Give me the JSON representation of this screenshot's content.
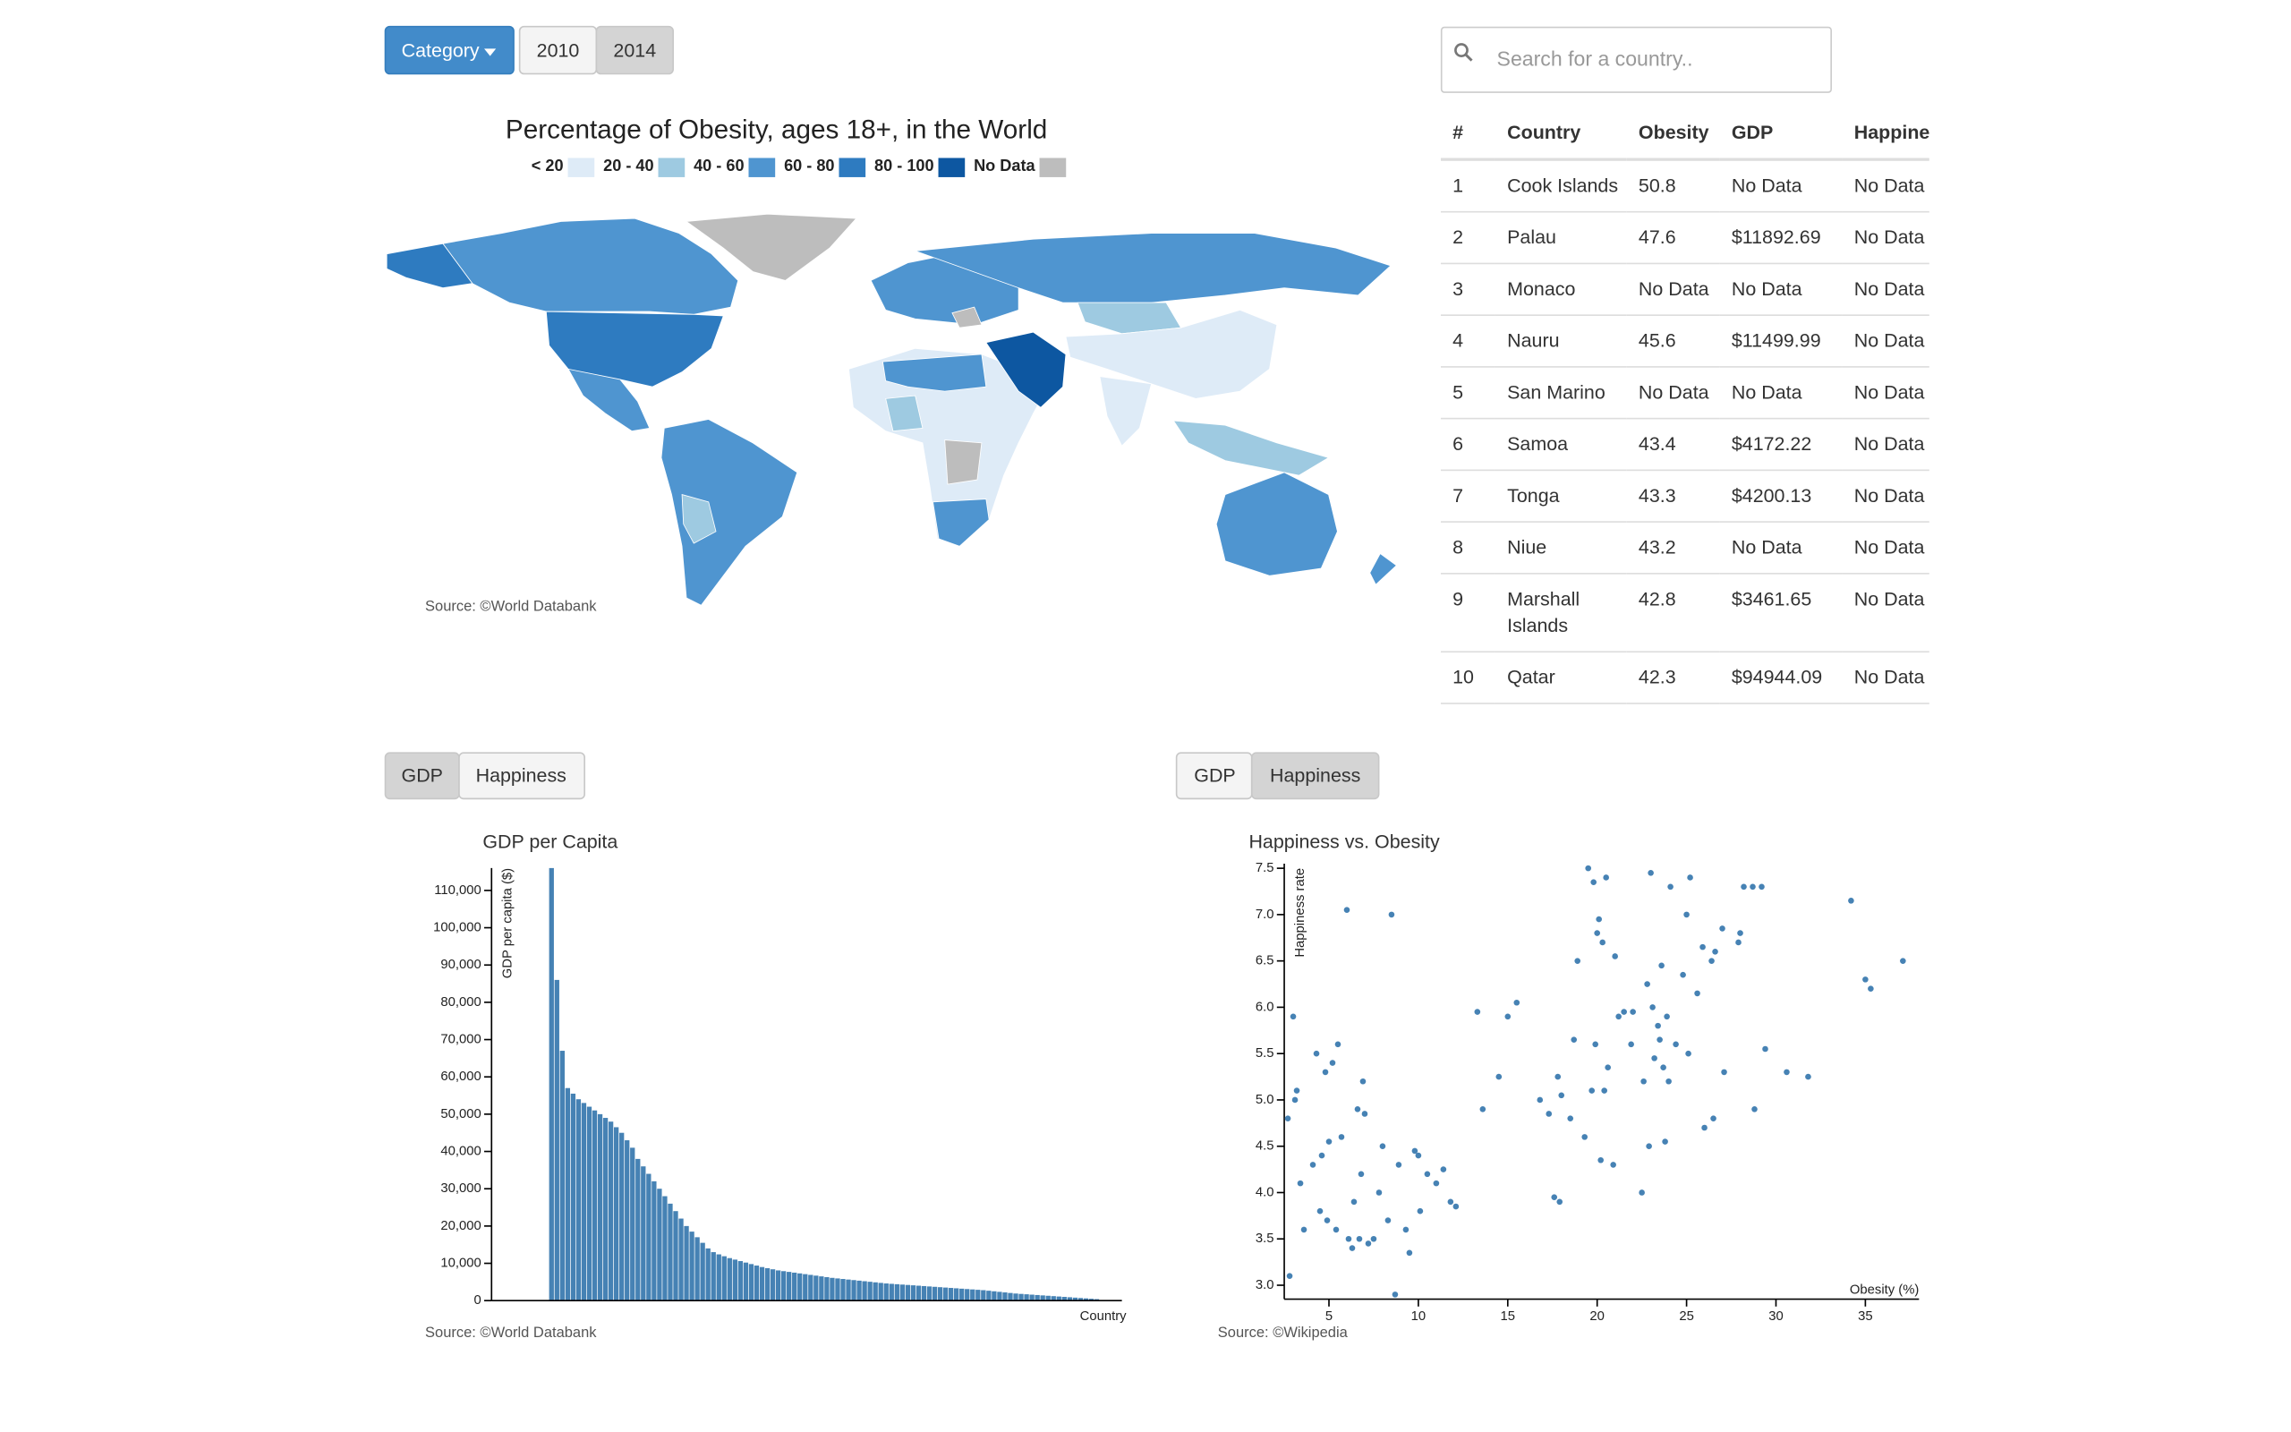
{
  "controls": {
    "category": "Category",
    "years": [
      "2010",
      "2014"
    ],
    "search_placeholder": "Search for a country.."
  },
  "map": {
    "title": "Percentage of Obesity, ages 18+, in the World",
    "legend": [
      {
        "label": "< 20",
        "color": "#deebf7"
      },
      {
        "label": "20 - 40",
        "color": "#9ecae1"
      },
      {
        "label": "40 - 60",
        "color": "#4f95d0"
      },
      {
        "label": "60 - 80",
        "color": "#2e7bc0"
      },
      {
        "label": "80 - 100",
        "color": "#0d57a1"
      },
      {
        "label": "No Data",
        "color": "#bdbdbd"
      }
    ],
    "source": "Source: ©World Databank"
  },
  "table": {
    "headers": [
      "#",
      "Country",
      "Obesity",
      "GDP",
      "Happiness"
    ],
    "rows": [
      [
        1,
        "Cook Islands",
        50.8,
        "No Data",
        "No Data"
      ],
      [
        2,
        "Palau",
        47.6,
        "$11892.69",
        "No Data"
      ],
      [
        3,
        "Monaco",
        "No Data",
        "No Data",
        "No Data"
      ],
      [
        4,
        "Nauru",
        45.6,
        "$11499.99",
        "No Data"
      ],
      [
        5,
        "San Marino",
        "No Data",
        "No Data",
        "No Data"
      ],
      [
        6,
        "Samoa",
        43.4,
        "$4172.22",
        "No Data"
      ],
      [
        7,
        "Tonga",
        43.3,
        "$4200.13",
        "No Data"
      ],
      [
        8,
        "Niue",
        43.2,
        "No Data",
        "No Data"
      ],
      [
        9,
        "Marshall Islands",
        42.8,
        "$3461.65",
        "No Data"
      ],
      [
        10,
        "Qatar",
        42.3,
        "$94944.09",
        "No Data"
      ]
    ]
  },
  "chart_data": [
    {
      "type": "bar",
      "toggle": [
        "GDP",
        "Happiness"
      ],
      "title": "GDP per Capita",
      "x_label": "Country",
      "y_label": "GDP per capita ($)",
      "source": "Source: ©World Databank",
      "color": "#4682b4",
      "categories": [
        null,
        null,
        null,
        null,
        null,
        null,
        null,
        null,
        null,
        null,
        null,
        null,
        null,
        null,
        null,
        null,
        null,
        null,
        null,
        null,
        null,
        null,
        null,
        null,
        null,
        null,
        null,
        null,
        null,
        null,
        null,
        null,
        null,
        null,
        null,
        null,
        null,
        null,
        null,
        null,
        null,
        null,
        null,
        null,
        null,
        null,
        null,
        null,
        null,
        null,
        null,
        null,
        null,
        null,
        null,
        null,
        null,
        null,
        null,
        null,
        null,
        null,
        null,
        null,
        null,
        null,
        null,
        null,
        null,
        null,
        null,
        null,
        null,
        null,
        null,
        null,
        null,
        null,
        null,
        null,
        null,
        null,
        null,
        null,
        null,
        null,
        null,
        null,
        null,
        null,
        null,
        null,
        null,
        null,
        null,
        null,
        null,
        null,
        null,
        null,
        null,
        null
      ],
      "values": [
        116000,
        86000,
        67000,
        57000,
        55500,
        54000,
        53000,
        52000,
        51000,
        50000,
        49000,
        48000,
        46500,
        45000,
        43000,
        41000,
        38000,
        36000,
        34000,
        32000,
        30000,
        28000,
        26000,
        24000,
        22000,
        20000,
        18500,
        17000,
        15500,
        14000,
        13000,
        12400,
        11900,
        11400,
        11000,
        10600,
        10200,
        9800,
        9400,
        9000,
        8700,
        8400,
        8100,
        7900,
        7700,
        7500,
        7300,
        7100,
        6900,
        6700,
        6500,
        6300,
        6100,
        5950,
        5800,
        5650,
        5500,
        5350,
        5200,
        5050,
        4900,
        4750,
        4600,
        4500,
        4400,
        4300,
        4200,
        4100,
        4000,
        3900,
        3800,
        3700,
        3600,
        3500,
        3400,
        3300,
        3200,
        3100,
        3000,
        2900,
        2800,
        2650,
        2500,
        2350,
        2200,
        2050,
        1900,
        1800,
        1700,
        1600,
        1500,
        1400,
        1300,
        1200,
        1100,
        1000,
        900,
        800,
        700,
        600,
        500,
        400
      ],
      "ylim": [
        0,
        116000
      ],
      "yticks": [
        0,
        {
          "value": 10000,
          "label": "10,000"
        },
        {
          "value": 20000,
          "label": "20,000"
        },
        {
          "value": 30000,
          "label": "30,000"
        },
        {
          "value": 40000,
          "label": "40,000"
        },
        {
          "value": 50000,
          "label": "50,000"
        },
        {
          "value": 60000,
          "label": "60,000"
        },
        {
          "value": 70000,
          "label": "70,000"
        },
        {
          "value": 80000,
          "label": "80,000"
        },
        {
          "value": 90000,
          "label": "90,000"
        },
        {
          "value": 100000,
          "label": "100,000"
        },
        {
          "value": 110000,
          "label": "110,000"
        }
      ]
    },
    {
      "type": "scatter",
      "toggle": [
        "GDP",
        "Happiness"
      ],
      "title": "Happiness vs. Obesity",
      "x_label": "Obesity (%)",
      "y_label": "Happiness rate",
      "source": "Source: ©Wikipedia",
      "color": "#4682b4",
      "x": [
        2.8,
        2.7,
        3.0,
        3.2,
        3.1,
        3.6,
        3.4,
        4.1,
        4.3,
        4.5,
        4.6,
        4.8,
        4.9,
        5.0,
        5.2,
        5.4,
        5.5,
        5.7,
        6.0,
        6.1,
        6.3,
        6.4,
        6.6,
        6.7,
        6.8,
        6.9,
        7.0,
        7.2,
        7.5,
        7.8,
        8.0,
        8.3,
        8.7,
        8.5,
        8.9,
        9.3,
        9.5,
        9.8,
        10.0,
        10.1,
        10.5,
        11.0,
        11.4,
        11.8,
        12.1,
        13.3,
        13.6,
        14.5,
        15.0,
        15.5,
        16.8,
        17.3,
        17.6,
        17.9,
        17.8,
        18.0,
        18.5,
        18.7,
        18.9,
        19.3,
        19.5,
        19.7,
        19.8,
        19.9,
        20.0,
        20.1,
        20.2,
        20.3,
        20.4,
        20.5,
        20.6,
        20.9,
        21.0,
        21.2,
        21.5,
        21.9,
        22.0,
        22.5,
        22.6,
        22.8,
        22.9,
        23.0,
        23.1,
        23.2,
        23.4,
        23.5,
        23.6,
        23.7,
        23.8,
        23.9,
        24.0,
        24.1,
        24.4,
        24.8,
        25.0,
        25.1,
        25.2,
        25.6,
        25.9,
        26.0,
        26.4,
        26.5,
        26.6,
        27.0,
        27.1,
        27.9,
        28.0,
        28.2,
        28.7,
        28.8,
        29.2,
        29.4,
        30.6,
        31.8,
        34.2,
        35.0,
        35.3,
        37.1
      ],
      "values": [
        3.1,
        4.8,
        5.9,
        5.1,
        5.0,
        3.6,
        4.1,
        4.3,
        5.5,
        3.8,
        4.4,
        5.3,
        3.7,
        4.55,
        5.4,
        3.6,
        5.6,
        4.6,
        7.05,
        3.5,
        3.4,
        3.9,
        4.9,
        3.5,
        4.2,
        5.2,
        4.85,
        3.45,
        3.5,
        4.0,
        4.5,
        3.7,
        2.9,
        7.0,
        4.3,
        3.6,
        3.35,
        4.45,
        4.4,
        3.8,
        4.2,
        4.1,
        4.25,
        3.9,
        3.85,
        5.95,
        4.9,
        5.25,
        5.9,
        6.05,
        5.0,
        4.85,
        3.95,
        3.9,
        5.25,
        5.05,
        4.8,
        5.65,
        6.5,
        4.6,
        7.5,
        5.1,
        7.35,
        5.6,
        6.8,
        6.95,
        4.35,
        6.7,
        5.1,
        7.4,
        5.35,
        4.3,
        6.55,
        5.9,
        5.95,
        5.6,
        5.95,
        4.0,
        5.2,
        6.25,
        4.5,
        7.45,
        6.0,
        5.45,
        5.8,
        5.65,
        6.45,
        5.35,
        4.55,
        5.9,
        5.2,
        7.3,
        5.6,
        6.35,
        7.0,
        5.5,
        7.4,
        6.15,
        6.65,
        4.7,
        6.5,
        4.8,
        6.6,
        6.85,
        5.3,
        6.7,
        6.8,
        7.3,
        7.3,
        4.9,
        7.3,
        5.55,
        5.3,
        5.25,
        7.15,
        6.3,
        6.2,
        6.5
      ],
      "xlim": [
        2.5,
        38
      ],
      "xticks": [
        5,
        10,
        15,
        20,
        25,
        30,
        35
      ],
      "ylim": [
        2.85,
        7.55
      ],
      "yticks": [
        {
          "value": 3,
          "label": "3.0"
        },
        3.5,
        {
          "value": 4,
          "label": "4.0"
        },
        4.5,
        {
          "value": 5,
          "label": "5.0"
        },
        5.5,
        {
          "value": 6,
          "label": "6.0"
        },
        6.5,
        {
          "value": 7,
          "label": "7.0"
        },
        7.5
      ]
    }
  ]
}
